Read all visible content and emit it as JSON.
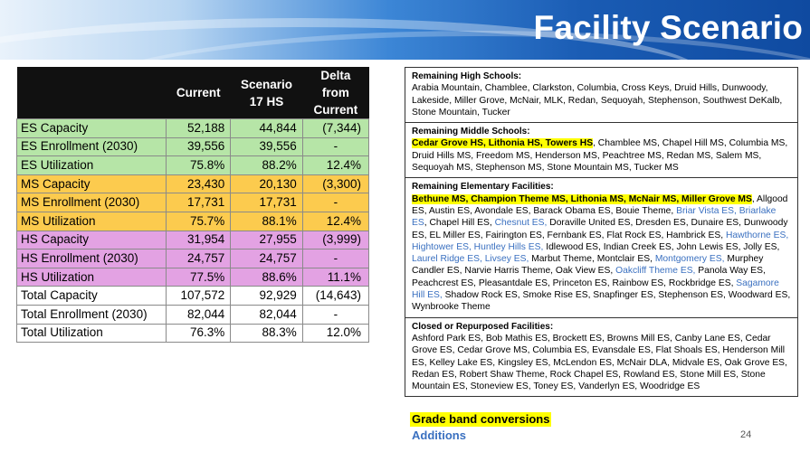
{
  "slide": {
    "title": "Facility Scenario",
    "page_number": "24"
  },
  "table": {
    "headers": [
      "",
      "Current",
      "Scenario 17 HS",
      "Delta from Current"
    ],
    "rows": [
      {
        "label": "ES Capacity",
        "current": "52,188",
        "scenario": "44,844",
        "delta": "(7,344)",
        "group": "es"
      },
      {
        "label": "ES Enrollment (2030)",
        "current": "39,556",
        "scenario": "39,556",
        "delta": "-",
        "group": "es"
      },
      {
        "label": "ES Utilization",
        "current": "75.8%",
        "scenario": "88.2%",
        "delta": "12.4%",
        "group": "es"
      },
      {
        "label": "MS Capacity",
        "current": "23,430",
        "scenario": "20,130",
        "delta": "(3,300)",
        "group": "ms"
      },
      {
        "label": "MS Enrollment (2030)",
        "current": "17,731",
        "scenario": "17,731",
        "delta": "-",
        "group": "ms"
      },
      {
        "label": "MS Utilization",
        "current": "75.7%",
        "scenario": "88.1%",
        "delta": "12.4%",
        "group": "ms"
      },
      {
        "label": "HS Capacity",
        "current": "31,954",
        "scenario": "27,955",
        "delta": "(3,999)",
        "group": "hs"
      },
      {
        "label": "HS Enrollment (2030)",
        "current": "24,757",
        "scenario": "24,757",
        "delta": "-",
        "group": "hs"
      },
      {
        "label": "HS Utilization",
        "current": "77.5%",
        "scenario": "88.6%",
        "delta": "11.1%",
        "group": "hs"
      },
      {
        "label": "Total Capacity",
        "current": "107,572",
        "scenario": "92,929",
        "delta": "(14,643)",
        "group": "total"
      },
      {
        "label": "Total Enrollment (2030)",
        "current": "82,044",
        "scenario": "82,044",
        "delta": "-",
        "group": "total"
      },
      {
        "label": "Total Utilization",
        "current": "76.3%",
        "scenario": "88.3%",
        "delta": "12.0%",
        "group": "total"
      }
    ]
  },
  "panel": {
    "high_schools": {
      "heading": "Remaining High Schools:",
      "parts": [
        {
          "t": "Arabia Mountain, Chamblee, Clarkston, Columbia, Cross Keys, Druid Hills, Dunwoody, Lakeside, Miller Grove, McNair, MLK, Redan, Sequoyah, Stephenson, Southwest DeKalb, Stone Mountain, Tucker",
          "s": "plain"
        }
      ]
    },
    "middle_schools": {
      "heading": "Remaining Middle Schools:",
      "parts": [
        {
          "t": "Cedar Grove HS, Lithonia HS, Towers HS",
          "s": "hl"
        },
        {
          "t": ", Chamblee MS, Chapel Hill MS, Columbia MS, Druid Hills MS, Freedom MS, Henderson MS, Peachtree MS, Redan MS, Salem MS, Sequoyah MS, Stephenson MS, Stone Mountain MS, Tucker MS",
          "s": "plain"
        }
      ]
    },
    "elementary": {
      "heading": "Remaining  Elementary Facilities:",
      "parts": [
        {
          "t": "Bethune MS, Champion Theme MS, Lithonia MS, McNair MS, Miller Grove MS",
          "s": "hl"
        },
        {
          "t": ", Allgood ES, Austin ES, Avondale ES, Barack Obama ES, Bouie Theme, ",
          "s": "plain"
        },
        {
          "t": "Briar Vista ES, Briarlake ES",
          "s": "blue"
        },
        {
          "t": ", Chapel Hill ES, ",
          "s": "plain"
        },
        {
          "t": "Chesnut ES,",
          "s": "blue"
        },
        {
          "t": " Doraville United ES, Dresden ES, Dunaire ES, Dunwoody ES, EL Miller ES, Fairington ES, Fernbank ES, Flat Rock ES, Hambrick ES, ",
          "s": "plain"
        },
        {
          "t": "Hawthorne ES, Hightower ES, Huntley Hills ES,",
          "s": "blue"
        },
        {
          "t": " Idlewood ES, Indian Creek ES, John Lewis ES, Jolly ES, ",
          "s": "plain"
        },
        {
          "t": "Laurel Ridge ES, Livsey ES,",
          "s": "blue"
        },
        {
          "t": " Marbut Theme, Montclair ES, ",
          "s": "plain"
        },
        {
          "t": "Montgomery ES,",
          "s": "blue"
        },
        {
          "t": " Murphey Candler ES, Narvie Harris Theme, Oak View ES, ",
          "s": "plain"
        },
        {
          "t": "Oakcliff Theme ES,",
          "s": "blue"
        },
        {
          "t": " Panola Way ES, Peachcrest ES, Pleasantdale ES, Princeton ES, Rainbow ES, Rockbridge ES, ",
          "s": "plain"
        },
        {
          "t": "Sagamore Hill ES,",
          "s": "blue"
        },
        {
          "t": " Shadow Rock ES, Smoke Rise ES, Snapfinger ES, Stephenson ES, Woodward ES, Wynbrooke Theme",
          "s": "plain"
        }
      ]
    },
    "closed": {
      "heading": "Closed or Repurposed Facilities:",
      "parts": [
        {
          "t": "Ashford Park ES, Bob Mathis ES, Brockett ES, Browns Mill ES, Canby Lane ES, Cedar Grove ES, Cedar Grove MS, Columbia ES, Evansdale ES, Flat Shoals ES, Henderson Mill ES,  Kelley Lake ES, Kingsley ES, McLendon ES, McNair DLA, Midvale ES, Oak Grove ES, Redan ES, Robert Shaw Theme, Rock Chapel ES, Rowland ES, Stone Mill ES, Stone Mountain ES, Stoneview ES, Toney ES, Vanderlyn ES, Woodridge ES",
          "s": "plain"
        }
      ]
    }
  },
  "legend": {
    "conversions": "Grade band conversions",
    "additions": "Additions"
  },
  "colors": {
    "es_row": "#b6e5a7",
    "ms_row": "#fccb4e",
    "hs_row": "#e3a2e3",
    "highlight": "#ffff00",
    "additions_blue": "#3a70c0"
  }
}
